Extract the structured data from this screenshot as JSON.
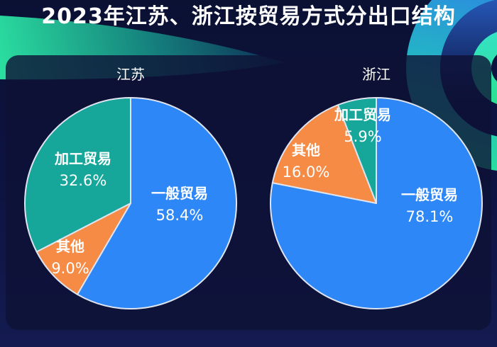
{
  "header": {
    "title": "2023年江苏、浙江按贸易方式分出口结构"
  },
  "colors": {
    "general_trade": "#2E87F7",
    "other": "#F68B45",
    "processing_trade": "#16A69A",
    "slice_stroke": "#DEE4F0",
    "label_text": "#FFFFFF",
    "card_bg": "#0E1236",
    "page_bg": "#0D1340",
    "decor_green": "#2BDFA0",
    "decor_blue": "#2E7FE8"
  },
  "chart_data": [
    {
      "type": "pie",
      "title": "江苏",
      "unit": "%",
      "start_angle_deg": 0,
      "direction": "clockwise",
      "legend_position": "inside-labels",
      "slices": [
        {
          "key": "general-trade",
          "label": "一般贸易",
          "value": 58.4
        },
        {
          "key": "other",
          "label": "其他",
          "value": 9.0
        },
        {
          "key": "processing-trade",
          "label": "加工贸易",
          "value": 32.6
        }
      ]
    },
    {
      "type": "pie",
      "title": "浙江",
      "unit": "%",
      "start_angle_deg": 0,
      "direction": "clockwise",
      "legend_position": "inside-labels",
      "slices": [
        {
          "key": "general-trade",
          "label": "一般贸易",
          "value": 78.1
        },
        {
          "key": "other",
          "label": "其他",
          "value": 16.0
        },
        {
          "key": "processing-trade",
          "label": "加工贸易",
          "value": 5.9
        }
      ]
    }
  ]
}
